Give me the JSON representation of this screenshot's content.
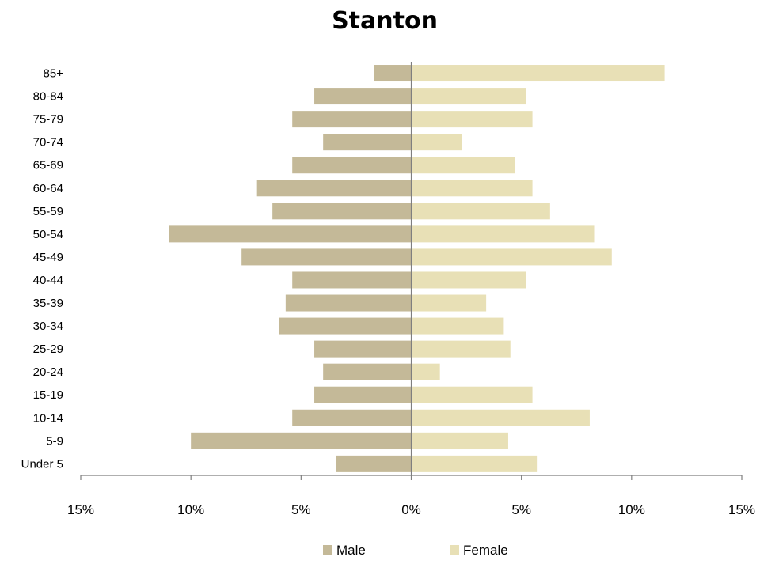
{
  "chart_data": {
    "type": "bar",
    "orientation": "horizontal",
    "title": "Stanton",
    "categories": [
      "Under 5",
      "5-9",
      "10-14",
      "15-19",
      "20-24",
      "25-29",
      "30-34",
      "35-39",
      "40-44",
      "45-49",
      "50-54",
      "55-59",
      "60-64",
      "65-69",
      "70-74",
      "75-79",
      "80-84",
      "85+"
    ],
    "series": [
      {
        "name": "Male",
        "color": "#c4b998",
        "values": [
          -3.4,
          -10.0,
          -5.4,
          -4.4,
          -4.0,
          -4.4,
          -6.0,
          -5.7,
          -5.4,
          -7.7,
          -11.0,
          -6.3,
          -7.0,
          -5.4,
          -4.0,
          -5.4,
          -4.4,
          -1.7
        ]
      },
      {
        "name": "Female",
        "color": "#e8e0b6",
        "values": [
          5.7,
          4.4,
          8.1,
          5.5,
          1.3,
          4.5,
          4.2,
          3.4,
          5.2,
          9.1,
          8.3,
          6.3,
          5.5,
          4.7,
          2.3,
          5.5,
          5.2,
          11.5
        ]
      }
    ],
    "xlim": [
      -15,
      15
    ],
    "xticks": [
      -15,
      -10,
      -5,
      0,
      5,
      10,
      15
    ],
    "xtick_labels": [
      "15%",
      "10%",
      "5%",
      "0%",
      "5%",
      "10%",
      "15%"
    ],
    "grid": false,
    "legend_position": "bottom"
  }
}
